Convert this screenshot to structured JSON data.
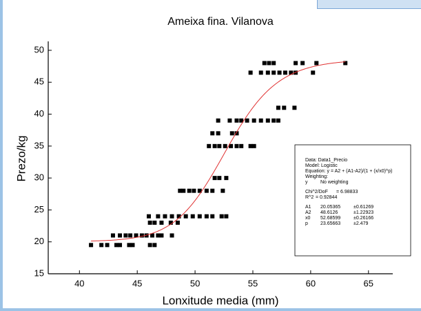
{
  "chart_data": {
    "type": "scatter",
    "title": "Ameixa fina. Vilanova",
    "x_label": "Lonxitude media (mm)",
    "y_label": "Prezo/kg",
    "xlim": [
      37.3,
      67.1
    ],
    "ylim": [
      15,
      51.4
    ],
    "xticks": [
      40,
      45,
      50,
      55,
      60,
      65
    ],
    "yticks": [
      15,
      20,
      25,
      30,
      35,
      40,
      45,
      50
    ],
    "series": [
      {
        "color": "#000000",
        "x": [
          41.0,
          41.9,
          42.4,
          43.2,
          43.5,
          44.3,
          44.6,
          46.1,
          46.5,
          42.9,
          43.5,
          44.0,
          44.4,
          44.9,
          45.4,
          45.8,
          46.3,
          46.8,
          47.1,
          48.0,
          46.1,
          46.5,
          47.1,
          47.9,
          48.5,
          46.0,
          46.8,
          47.4,
          48.0,
          48.6,
          49.2,
          49.8,
          50.4,
          51.0,
          51.5,
          52.3,
          52.7,
          48.7,
          49.0,
          49.5,
          49.9,
          50.4,
          51.0,
          51.5,
          52.4,
          51.7,
          52.1,
          52.7,
          51.2,
          51.7,
          52.1,
          52.6,
          53.1,
          53.6,
          54.0,
          54.8,
          55.1,
          51.5,
          52.0,
          53.2,
          53.6,
          52.0,
          53.0,
          53.6,
          54.0,
          54.5,
          55.1,
          55.7,
          56.3,
          56.8,
          57.2,
          57.2,
          57.7,
          58.6,
          54.8,
          55.7,
          56.3,
          56.8,
          57.3,
          57.8,
          58.3,
          58.7,
          60.2,
          56.0,
          56.4,
          56.8,
          58.7,
          59.3,
          60.5,
          63.0
        ],
        "values": [
          19.5,
          19.5,
          19.5,
          19.5,
          19.5,
          19.5,
          19.5,
          19.5,
          19.5,
          21,
          21,
          21,
          21,
          21,
          21,
          21,
          21,
          21,
          21,
          21,
          23,
          23,
          23,
          23,
          23,
          24,
          24,
          24,
          24,
          24,
          24,
          24,
          24,
          24,
          24,
          24,
          24,
          28,
          28,
          28,
          28,
          28,
          28,
          28,
          28,
          30,
          30,
          30,
          35,
          35,
          35,
          35,
          35,
          35,
          35,
          35,
          35,
          37,
          37,
          37,
          37,
          39,
          39,
          39,
          39,
          39,
          39,
          39,
          39,
          39,
          39,
          41,
          41,
          41,
          46.5,
          46.5,
          46.5,
          46.5,
          46.5,
          46.5,
          46.5,
          46.5,
          46.5,
          48,
          48,
          48,
          48,
          48,
          48,
          48
        ]
      }
    ],
    "fit": {
      "color": "#e03030",
      "x_range": [
        41,
        63
      ],
      "data": "Data: Data1_Precio",
      "model": "Model: Logistic",
      "equation": "Equation: y = A2 + (A1-A2)/(1 + (x/x0)^p)",
      "weighting": "Weighting:",
      "weighting_var": "y",
      "weighting_value": "No weighting",
      "chi2_label": "Chi^2/DoF",
      "chi2": {
        "value": 6.98833,
        "label": "= 6.98833"
      },
      "r2_label": "R^2",
      "r2": {
        "value": 0.92844,
        "label": "= 0.92844"
      },
      "params": [
        {
          "name": "A1",
          "value": 20.05365,
          "error": "±0.61269"
        },
        {
          "name": "A2",
          "value": 48.6126,
          "error": "±1.22923"
        },
        {
          "name": "x0",
          "value": 52.68599,
          "error": "±0.26166"
        },
        {
          "name": "p",
          "value": 23.65663,
          "error": "±2.479"
        }
      ]
    }
  }
}
